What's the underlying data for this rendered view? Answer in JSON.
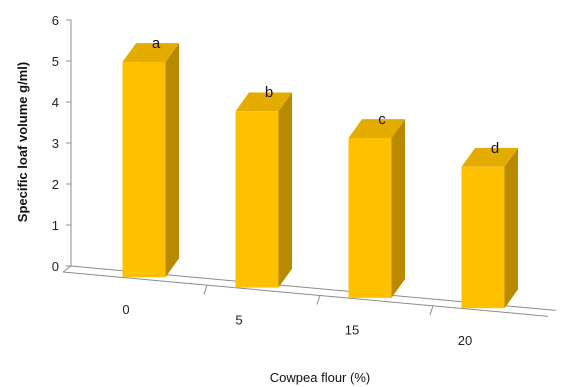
{
  "chart_data": {
    "type": "bar",
    "style": "3d-column",
    "categories": [
      "0",
      "5",
      "15",
      "20"
    ],
    "values": [
      5.25,
      4.3,
      3.9,
      3.45
    ],
    "annotations": [
      "a",
      "b",
      "c",
      "d"
    ],
    "xlabel": "Cowpea flour (%)",
    "ylabel": "Specific loaf volume g/ml)",
    "ylim": [
      0,
      6
    ],
    "yticks": [
      "0",
      "1",
      "2",
      "3",
      "4",
      "5",
      "6"
    ],
    "grid": false,
    "legend": "none",
    "colors": {
      "bar_front": "#FFC000",
      "bar_side": "#B88A00",
      "bar_top": "#E5AC00",
      "axis": "#8c8c8c"
    }
  }
}
